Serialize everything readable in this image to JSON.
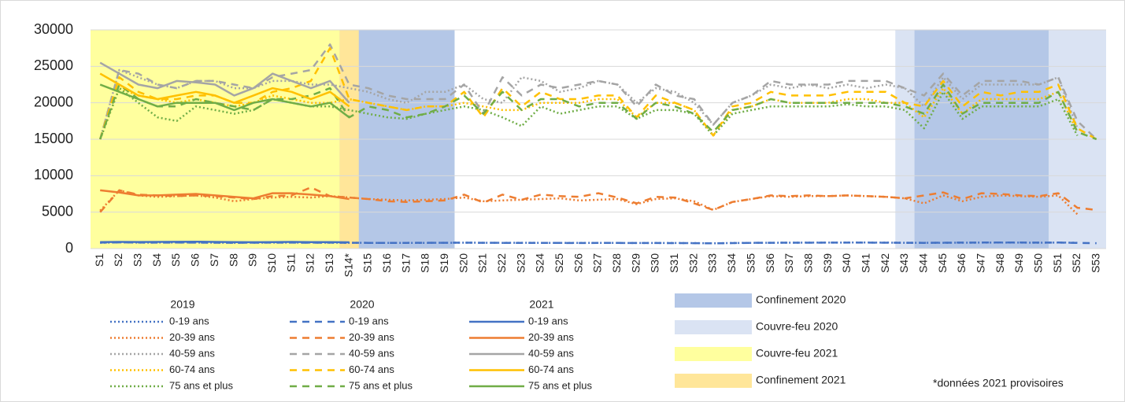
{
  "chart_data": {
    "type": "line",
    "categories": [
      "S1",
      "S2",
      "S3",
      "S4",
      "S5",
      "S6",
      "S7",
      "S8",
      "S9",
      "S10",
      "S11",
      "S12",
      "S13",
      "S14*",
      "S15",
      "S16",
      "S17",
      "S18",
      "S19",
      "S20",
      "S21",
      "S22",
      "S23",
      "S24",
      "S25",
      "S26",
      "S27",
      "S28",
      "S29",
      "S30",
      "S31",
      "S32",
      "S33",
      "S34",
      "S35",
      "S36",
      "S37",
      "S38",
      "S39",
      "S40",
      "S41",
      "S42",
      "S43",
      "S44",
      "S45",
      "S46",
      "S47",
      "S48",
      "S49",
      "S50",
      "S51",
      "S52",
      "S53"
    ],
    "ylim": [
      0,
      30000
    ],
    "yticks": [
      0,
      5000,
      10000,
      15000,
      20000,
      25000,
      30000
    ],
    "grid": true,
    "periods": [
      {
        "name": "Couvre-feu 2020",
        "color": "#dae3f3",
        "start": "S43",
        "end": "S53"
      },
      {
        "name": "Confinement 2020",
        "color": "#b4c7e7",
        "start": "S12",
        "end": "S19"
      },
      {
        "name": "Confinement 2020",
        "color": "#b4c7e7",
        "start": "S44",
        "end": "S50"
      },
      {
        "name": "Couvre-feu 2021",
        "color": "#ffff9e",
        "start": "S1",
        "end": "S13"
      },
      {
        "name": "Confinement 2021",
        "color": "#ffe699",
        "start": "S14*",
        "end": "S14*"
      }
    ],
    "footnote": "*données 2021 provisoires",
    "groups": [
      {
        "label": "2019",
        "dash": "2 3",
        "series": [
          {
            "name": "0-19 ans",
            "color": "#4472c4",
            "values": [
              800,
              850,
              820,
              830,
              840,
              830,
              820,
              800,
              810,
              820,
              830,
              820,
              810,
              800,
              790,
              780,
              780,
              790,
              800,
              810,
              800,
              790,
              800,
              790,
              780,
              780,
              790,
              780,
              770,
              780,
              770,
              760,
              720,
              770,
              790,
              800,
              810,
              820,
              820,
              830,
              830,
              820,
              800,
              790,
              800,
              810,
              820,
              830,
              820,
              810,
              830,
              800,
              null
            ]
          },
          {
            "name": "20-39 ans",
            "color": "#ed7d31",
            "values": [
              5200,
              8000,
              7300,
              7100,
              7200,
              7300,
              7000,
              6500,
              6800,
              7000,
              7100,
              7000,
              7200,
              7000,
              6800,
              6700,
              6600,
              6700,
              6800,
              7000,
              6500,
              6600,
              6700,
              6800,
              6900,
              6600,
              6700,
              6800,
              6100,
              6800,
              6900,
              6500,
              5300,
              6400,
              6800,
              7200,
              7100,
              7200,
              7200,
              7300,
              7200,
              7100,
              6900,
              6200,
              7300,
              6500,
              7100,
              7300,
              7200,
              7100,
              7300,
              4700,
              null
            ]
          },
          {
            "name": "40-59 ans",
            "color": "#a5a5a5",
            "values": [
              15000,
              24500,
              23500,
              22500,
              22000,
              23000,
              23000,
              22000,
              22000,
              23000,
              23000,
              22500,
              22500,
              22000,
              21500,
              20500,
              20000,
              21500,
              21500,
              22500,
              20500,
              20000,
              23500,
              23000,
              21500,
              22000,
              23000,
              22500,
              20000,
              22000,
              21500,
              20000,
              17000,
              20000,
              21000,
              22500,
              22000,
              22500,
              22000,
              22500,
              22000,
              22500,
              22000,
              19500,
              23500,
              20500,
              22500,
              22500,
              22500,
              22500,
              23500,
              16500,
              null
            ]
          },
          {
            "name": "60-74 ans",
            "color": "#ffc000",
            "values": [
              15000,
              22000,
              21000,
              20500,
              20000,
              20500,
              20000,
              19500,
              20000,
              21000,
              20500,
              20000,
              20000,
              20500,
              20000,
              19500,
              19000,
              19500,
              19500,
              20000,
              19500,
              19000,
              19000,
              20000,
              20000,
              20000,
              20500,
              20500,
              18000,
              20000,
              20000,
              19000,
              15500,
              19000,
              19500,
              20500,
              20000,
              20000,
              20000,
              20500,
              20500,
              20000,
              20000,
              18000,
              22000,
              18500,
              20500,
              20500,
              20500,
              20500,
              21500,
              16000,
              null
            ]
          },
          {
            "name": "75 ans et plus",
            "color": "#70ad47",
            "values": [
              15000,
              22000,
              20000,
              18000,
              17500,
              19500,
              19000,
              18500,
              19000,
              20500,
              20000,
              19500,
              19500,
              19000,
              18500,
              18000,
              17800,
              18500,
              19000,
              19500,
              19000,
              18000,
              16800,
              19500,
              18500,
              19000,
              19500,
              19500,
              17800,
              19000,
              19000,
              18500,
              15500,
              18500,
              19000,
              19500,
              19500,
              19500,
              19500,
              19800,
              19500,
              19500,
              19000,
              16500,
              21500,
              17800,
              19500,
              19500,
              19500,
              19500,
              20500,
              15500,
              null
            ]
          }
        ]
      },
      {
        "label": "2020",
        "dash": "9 7",
        "series": [
          {
            "name": "0-19 ans",
            "color": "#4472c4",
            "values": [
              820,
              850,
              830,
              820,
              830,
              820,
              810,
              800,
              810,
              830,
              820,
              810,
              820,
              800,
              790,
              780,
              790,
              800,
              800,
              810,
              800,
              790,
              780,
              790,
              780,
              770,
              780,
              780,
              770,
              770,
              760,
              750,
              720,
              760,
              790,
              800,
              810,
              810,
              820,
              820,
              820,
              810,
              800,
              790,
              810,
              820,
              830,
              840,
              830,
              820,
              830,
              780,
              750
            ]
          },
          {
            "name": "20-39 ans",
            "color": "#ed7d31",
            "values": [
              5000,
              8000,
              7400,
              7300,
              7200,
              7300,
              7200,
              7000,
              6800,
              7200,
              7300,
              8400,
              7200,
              7000,
              6800,
              6500,
              6400,
              6500,
              6600,
              7400,
              6300,
              7400,
              6700,
              7400,
              7200,
              7100,
              7600,
              7000,
              6200,
              7100,
              7000,
              6200,
              5300,
              6400,
              6800,
              7300,
              7200,
              7300,
              7200,
              7300,
              7200,
              7100,
              6900,
              7300,
              7700,
              6800,
              7600,
              7500,
              7300,
              7200,
              7600,
              5600,
              5300
            ]
          },
          {
            "name": "40-59 ans",
            "color": "#a5a5a5",
            "values": [
              15000,
              24500,
              24000,
              22500,
              22000,
              23000,
              23000,
              22500,
              22000,
              23500,
              24000,
              24500,
              28000,
              22500,
              22000,
              21000,
              20500,
              20500,
              20500,
              22500,
              18500,
              23500,
              21000,
              22500,
              22000,
              22500,
              23000,
              22500,
              19500,
              22500,
              21000,
              20500,
              17000,
              20000,
              21000,
              23000,
              22500,
              22500,
              22500,
              23000,
              23000,
              23000,
              22000,
              21000,
              24000,
              21000,
              23000,
              23000,
              23000,
              22500,
              23500,
              17500,
              15000
            ]
          },
          {
            "name": "60-74 ans",
            "color": "#ffc000",
            "values": [
              15000,
              23500,
              21500,
              20500,
              20500,
              21000,
              21000,
              20000,
              20000,
              21500,
              22000,
              23000,
              27500,
              20500,
              20000,
              19500,
              19000,
              19500,
              19500,
              21500,
              18000,
              22000,
              19500,
              21500,
              20500,
              20500,
              21000,
              21000,
              18000,
              21000,
              20000,
              19000,
              15500,
              19500,
              20000,
              21500,
              21000,
              21000,
              21000,
              21500,
              21500,
              21500,
              20000,
              19500,
              23000,
              19500,
              21500,
              21000,
              21500,
              21500,
              22500,
              16500,
              15000
            ]
          },
          {
            "name": "75 ans et plus",
            "color": "#70ad47",
            "values": [
              15000,
              22500,
              20500,
              19500,
              19500,
              20500,
              20000,
              19500,
              19000,
              20500,
              20500,
              21000,
              22000,
              18000,
              19500,
              19000,
              18000,
              18500,
              19500,
              21000,
              18500,
              21500,
              19000,
              20500,
              20500,
              19500,
              20000,
              20000,
              17800,
              20000,
              19500,
              18500,
              16000,
              19000,
              19500,
              20500,
              20000,
              20000,
              20000,
              20000,
              20000,
              20000,
              19500,
              18500,
              22500,
              18500,
              20000,
              20000,
              20000,
              20000,
              21500,
              16000,
              15000
            ]
          }
        ]
      },
      {
        "label": "2021",
        "dash": "none",
        "series": [
          {
            "name": "0-19 ans",
            "color": "#4472c4",
            "values": [
              900,
              920,
              910,
              920,
              930,
              950,
              920,
              880,
              870,
              900,
              920,
              900,
              880,
              860,
              null,
              null,
              null,
              null,
              null,
              null,
              null,
              null,
              null,
              null,
              null,
              null,
              null,
              null,
              null,
              null,
              null,
              null,
              null,
              null,
              null,
              null,
              null,
              null,
              null,
              null,
              null,
              null,
              null,
              null,
              null,
              null,
              null,
              null,
              null,
              null,
              null,
              null,
              null
            ]
          },
          {
            "name": "20-39 ans",
            "color": "#ed7d31",
            "values": [
              8000,
              7700,
              7300,
              7300,
              7400,
              7500,
              7300,
              7100,
              6900,
              7600,
              7600,
              7400,
              7200,
              6800,
              null,
              null,
              null,
              null,
              null,
              null,
              null,
              null,
              null,
              null,
              null,
              null,
              null,
              null,
              null,
              null,
              null,
              null,
              null,
              null,
              null,
              null,
              null,
              null,
              null,
              null,
              null,
              null,
              null,
              null,
              null,
              null,
              null,
              null,
              null,
              null,
              null,
              null,
              null
            ]
          },
          {
            "name": "40-59 ans",
            "color": "#a5a5a5",
            "values": [
              25500,
              24000,
              22500,
              22000,
              23000,
              22800,
              22500,
              21000,
              22000,
              24000,
              23000,
              22000,
              23000,
              20000,
              null,
              null,
              null,
              null,
              null,
              null,
              null,
              null,
              null,
              null,
              null,
              null,
              null,
              null,
              null,
              null,
              null,
              null,
              null,
              null,
              null,
              null,
              null,
              null,
              null,
              null,
              null,
              null,
              null,
              null,
              null,
              null,
              null,
              null,
              null,
              null,
              null,
              null,
              null
            ]
          },
          {
            "name": "60-74 ans",
            "color": "#ffc000",
            "values": [
              24000,
              22500,
              21000,
              20500,
              21000,
              21500,
              21000,
              20000,
              21000,
              22000,
              21500,
              20500,
              21500,
              19500,
              null,
              null,
              null,
              null,
              null,
              null,
              null,
              null,
              null,
              null,
              null,
              null,
              null,
              null,
              null,
              null,
              null,
              null,
              null,
              null,
              null,
              null,
              null,
              null,
              null,
              null,
              null,
              null,
              null,
              null,
              null,
              null,
              null,
              null,
              null,
              null,
              null,
              null,
              null
            ]
          },
          {
            "name": "75 ans et plus",
            "color": "#70ad47",
            "values": [
              22500,
              21500,
              20500,
              19500,
              20000,
              20000,
              20000,
              19000,
              20000,
              20500,
              20000,
              19500,
              20000,
              18000,
              null,
              null,
              null,
              null,
              null,
              null,
              null,
              null,
              null,
              null,
              null,
              null,
              null,
              null,
              null,
              null,
              null,
              null,
              null,
              null,
              null,
              null,
              null,
              null,
              null,
              null,
              null,
              null,
              null,
              null,
              null,
              null,
              null,
              null,
              null,
              null,
              null,
              null,
              null
            ]
          }
        ]
      }
    ]
  }
}
